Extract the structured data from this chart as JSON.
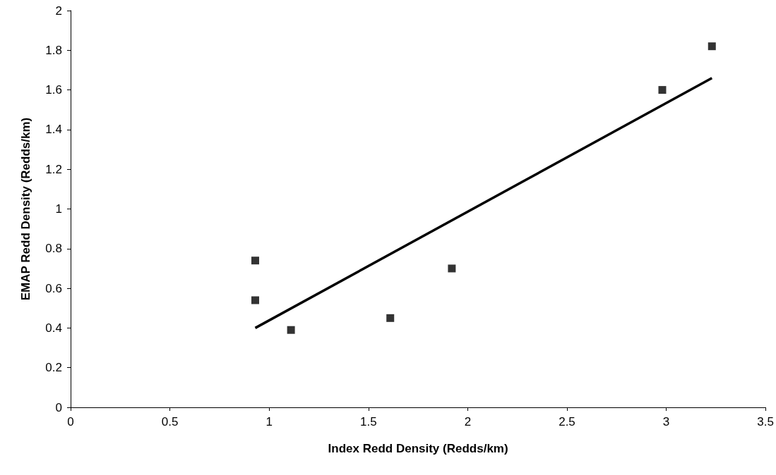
{
  "chart_data": {
    "type": "scatter",
    "xlabel": "Index Redd Density (Redds/km)",
    "ylabel": "EMAP Redd Density (Redds/km)",
    "series": [
      {
        "color": "#000000",
        "marker": "square",
        "x": [
          0.93,
          0.93,
          1.11,
          1.61,
          1.92,
          2.98,
          3.23
        ],
        "values": [
          0.74,
          0.54,
          0.39,
          0.45,
          0.7,
          1.6,
          1.82
        ]
      },
      {
        "type": "line",
        "color": "#000000",
        "marker": "none",
        "line_style": "solid",
        "x": [
          0.93,
          3.23
        ],
        "values": [
          0.4,
          1.66
        ]
      }
    ],
    "xlim": [
      0,
      3.5
    ],
    "xticks": [
      0,
      0.5,
      1,
      1.5,
      2,
      2.5,
      3,
      3.5
    ],
    "ylim": [
      0,
      2
    ],
    "yticks": [
      0,
      0.2,
      0.4,
      0.6,
      0.8,
      1,
      1.2,
      1.4,
      1.6,
      1.8,
      2
    ],
    "grid": false
  }
}
